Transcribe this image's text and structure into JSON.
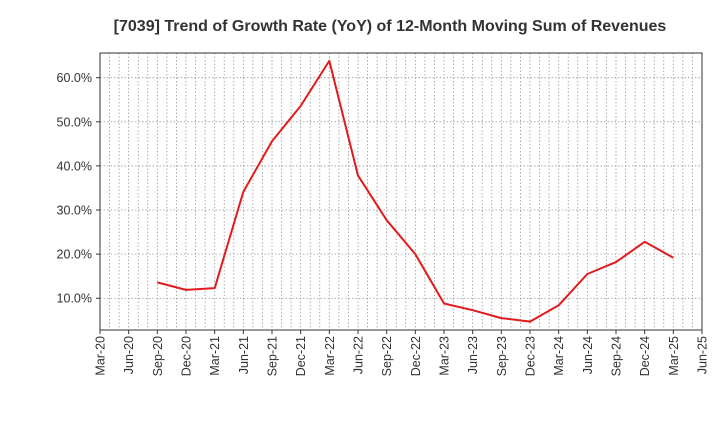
{
  "chart_data": {
    "type": "line",
    "title": "[7039]  Trend of Growth Rate (YoY) of 12-Month Moving Sum of Revenues",
    "xlabel": "",
    "ylabel": "",
    "x_tick_labels": [
      "Mar-20",
      "Jun-20",
      "Sep-20",
      "Dec-20",
      "Mar-21",
      "Jun-21",
      "Sep-21",
      "Dec-21",
      "Mar-22",
      "Jun-22",
      "Sep-22",
      "Dec-22",
      "Mar-23",
      "Jun-23",
      "Sep-23",
      "Dec-23",
      "Mar-24",
      "Jun-24",
      "Sep-24",
      "Dec-24",
      "Mar-25",
      "Jun-25"
    ],
    "y_ticks": [
      10,
      20,
      30,
      40,
      50,
      60
    ],
    "y_tick_labels": [
      "10.0%",
      "20.0%",
      "30.0%",
      "40.0%",
      "50.0%",
      "60.0%"
    ],
    "ylim": [
      2.8,
      65.6
    ],
    "grid": true,
    "line_color": "#e31a1c",
    "series": [
      {
        "x": [
          "Sep-20",
          "Dec-20",
          "Mar-21",
          "Jun-21",
          "Sep-21",
          "Dec-21",
          "Mar-22",
          "Jun-22",
          "Sep-22",
          "Dec-22",
          "Mar-23",
          "Jun-23",
          "Sep-23",
          "Dec-23",
          "Mar-24",
          "Jun-24",
          "Sep-24",
          "Dec-24",
          "Mar-25"
        ],
        "values": [
          13.6,
          11.9,
          12.3,
          34.1,
          45.6,
          53.6,
          63.8,
          37.8,
          27.7,
          20.0,
          8.8,
          7.3,
          5.5,
          4.7,
          8.4,
          15.5,
          18.2,
          22.8,
          19.2
        ]
      }
    ]
  }
}
